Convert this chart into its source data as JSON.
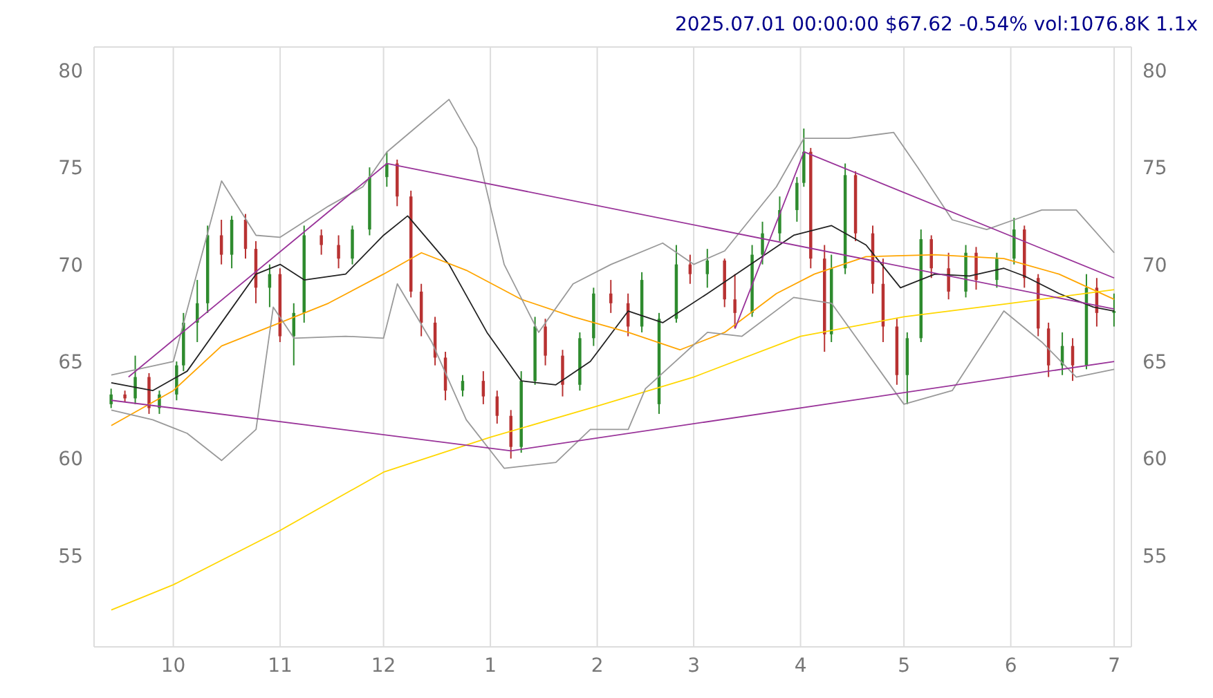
{
  "chart_data": {
    "type": "candlestick",
    "title": "2025.07.01 00:00:00 $67.62 -0.54% vol:1076.8K 1.1x",
    "x": [
      "2024-09-13",
      "2024-09-17",
      "2024-09-20",
      "2024-09-24",
      "2024-09-27",
      "2024-10-02",
      "2024-10-04",
      "2024-10-08",
      "2024-10-11",
      "2024-10-15",
      "2024-10-18",
      "2024-10-22",
      "2024-10-25",
      "2024-10-29",
      "2024-11-01",
      "2024-11-05",
      "2024-11-08",
      "2024-11-13",
      "2024-11-18",
      "2024-11-22",
      "2024-11-27",
      "2024-12-02",
      "2024-12-05",
      "2024-12-09",
      "2024-12-12",
      "2024-12-16",
      "2024-12-19",
      "2024-12-24",
      "2024-12-30",
      "2025-01-03",
      "2025-01-07",
      "2025-01-10",
      "2025-01-14",
      "2025-01-17",
      "2025-01-22",
      "2025-01-27",
      "2025-01-31",
      "2025-02-05",
      "2025-02-10",
      "2025-02-14",
      "2025-02-19",
      "2025-02-24",
      "2025-02-28",
      "2025-03-05",
      "2025-03-10",
      "2025-03-13",
      "2025-03-18",
      "2025-03-21",
      "2025-03-26",
      "2025-03-31",
      "2025-04-02",
      "2025-04-04",
      "2025-04-08",
      "2025-04-10",
      "2025-04-14",
      "2025-04-17",
      "2025-04-22",
      "2025-04-25",
      "2025-04-29",
      "2025-05-02",
      "2025-05-06",
      "2025-05-09",
      "2025-05-14",
      "2025-05-19",
      "2025-05-22",
      "2025-05-28",
      "2025-06-02",
      "2025-06-05",
      "2025-06-09",
      "2025-06-12",
      "2025-06-16",
      "2025-06-19",
      "2025-06-23",
      "2025-06-26",
      "2025-07-01"
    ],
    "ohlc": [
      [
        62.8,
        63.6,
        62.6,
        63.3
      ],
      [
        63.3,
        63.5,
        62.9,
        63.1
      ],
      [
        63.1,
        65.3,
        62.8,
        64.2
      ],
      [
        64.2,
        64.4,
        62.3,
        62.6
      ],
      [
        62.6,
        63.5,
        62.3,
        63.3
      ],
      [
        63.3,
        65.0,
        63.0,
        64.8
      ],
      [
        64.8,
        67.5,
        64.5,
        67.0
      ],
      [
        67.0,
        69.2,
        66.0,
        68.0
      ],
      [
        68.0,
        72.0,
        67.5,
        71.5
      ],
      [
        71.5,
        72.3,
        70.0,
        70.5
      ],
      [
        70.5,
        72.5,
        69.8,
        72.3
      ],
      [
        72.3,
        72.6,
        70.3,
        70.8
      ],
      [
        70.8,
        71.2,
        68.0,
        68.8
      ],
      [
        68.8,
        70.0,
        67.8,
        69.5
      ],
      [
        69.5,
        69.8,
        66.0,
        66.3
      ],
      [
        66.3,
        68.0,
        64.8,
        67.5
      ],
      [
        67.5,
        72.0,
        67.0,
        71.5
      ],
      [
        71.5,
        71.8,
        70.5,
        71.0
      ],
      [
        71.0,
        71.5,
        69.8,
        70.3
      ],
      [
        70.3,
        72.0,
        70.0,
        71.8
      ],
      [
        71.8,
        75.0,
        71.5,
        74.5
      ],
      [
        74.5,
        75.8,
        74.0,
        75.2
      ],
      [
        75.2,
        75.4,
        73.0,
        73.5
      ],
      [
        73.5,
        73.8,
        68.3,
        68.6
      ],
      [
        68.6,
        69.0,
        66.3,
        67.0
      ],
      [
        67.0,
        67.3,
        64.8,
        65.2
      ],
      [
        65.2,
        65.5,
        63.0,
        63.5
      ],
      [
        63.5,
        64.3,
        63.2,
        64.0
      ],
      [
        64.0,
        64.5,
        62.8,
        63.2
      ],
      [
        63.2,
        63.5,
        61.8,
        62.2
      ],
      [
        62.2,
        62.5,
        60.0,
        60.6
      ],
      [
        60.6,
        64.5,
        60.3,
        64.0
      ],
      [
        64.0,
        67.3,
        63.8,
        66.8
      ],
      [
        66.8,
        67.2,
        64.8,
        65.3
      ],
      [
        65.3,
        65.6,
        63.2,
        63.8
      ],
      [
        63.8,
        66.5,
        63.5,
        66.2
      ],
      [
        66.2,
        68.8,
        65.8,
        68.5
      ],
      [
        68.5,
        69.2,
        67.5,
        68.0
      ],
      [
        68.0,
        68.5,
        66.3,
        66.8
      ],
      [
        66.8,
        69.6,
        66.5,
        69.2
      ],
      [
        62.8,
        67.5,
        62.3,
        67.2
      ],
      [
        67.2,
        71.0,
        67.0,
        70.0
      ],
      [
        70.0,
        70.5,
        69.0,
        69.5
      ],
      [
        69.5,
        70.8,
        68.8,
        70.2
      ],
      [
        70.2,
        70.3,
        67.8,
        68.2
      ],
      [
        68.2,
        69.5,
        66.7,
        67.5
      ],
      [
        67.5,
        71.0,
        67.3,
        70.5
      ],
      [
        70.5,
        72.2,
        70.0,
        71.6
      ],
      [
        71.6,
        73.5,
        71.2,
        72.8
      ],
      [
        72.8,
        74.5,
        72.2,
        74.2
      ],
      [
        74.2,
        77.0,
        74.0,
        75.8
      ],
      [
        75.8,
        76.0,
        69.8,
        70.3
      ],
      [
        70.3,
        71.0,
        65.5,
        66.4
      ],
      [
        66.4,
        70.5,
        66.0,
        69.8
      ],
      [
        69.8,
        75.2,
        69.5,
        74.6
      ],
      [
        74.6,
        74.8,
        71.2,
        71.6
      ],
      [
        71.6,
        72.0,
        68.5,
        69.0
      ],
      [
        69.0,
        70.3,
        66.0,
        66.8
      ],
      [
        66.8,
        67.2,
        63.8,
        64.3
      ],
      [
        64.3,
        66.5,
        62.8,
        66.2
      ],
      [
        66.2,
        71.8,
        66.0,
        71.3
      ],
      [
        71.3,
        71.5,
        69.3,
        69.8
      ],
      [
        69.8,
        70.6,
        68.2,
        68.6
      ],
      [
        68.6,
        71.0,
        68.3,
        70.6
      ],
      [
        70.6,
        70.9,
        68.7,
        69.2
      ],
      [
        69.2,
        70.6,
        68.8,
        70.3
      ],
      [
        70.3,
        72.4,
        70.0,
        71.8
      ],
      [
        71.8,
        72.0,
        68.8,
        69.3
      ],
      [
        69.3,
        69.5,
        66.3,
        66.7
      ],
      [
        66.7,
        67.0,
        64.2,
        64.8
      ],
      [
        64.8,
        66.5,
        64.3,
        65.8
      ],
      [
        65.8,
        66.2,
        64.0,
        64.8
      ],
      [
        64.8,
        69.5,
        64.6,
        68.8
      ],
      [
        68.8,
        69.3,
        66.8,
        67.5
      ],
      [
        67.5,
        68.5,
        66.8,
        67.6
      ]
    ],
    "series": [
      {
        "type": "line",
        "color": "#222222",
        "x": [
          "2024-09-13",
          "2024-09-25",
          "2024-10-05",
          "2024-10-15",
          "2024-10-25",
          "2024-11-01",
          "2024-11-08",
          "2024-11-20",
          "2024-12-01",
          "2024-12-08",
          "2024-12-20",
          "2024-12-31",
          "2025-01-10",
          "2025-01-20",
          "2025-01-30",
          "2025-02-10",
          "2025-02-20",
          "2025-03-05",
          "2025-03-15",
          "2025-03-30",
          "2025-04-10",
          "2025-04-20",
          "2025-04-30",
          "2025-05-10",
          "2025-05-20",
          "2025-05-30",
          "2025-06-05",
          "2025-06-15",
          "2025-06-25",
          "2025-07-01"
        ],
        "values": [
          63.9,
          63.5,
          64.5,
          67,
          69.5,
          70,
          69.2,
          69.5,
          71.5,
          72.5,
          70,
          66.5,
          64,
          63.8,
          65,
          67.6,
          67,
          68.5,
          69.7,
          71.5,
          72,
          71,
          68.8,
          69.5,
          69.4,
          69.8,
          69.4,
          68.5,
          67.8,
          67.6
        ]
      },
      {
        "type": "line",
        "color": "#ffa500",
        "x": [
          "2024-09-13",
          "2024-10-01",
          "2024-10-15",
          "2024-11-01",
          "2024-11-15",
          "2024-12-01",
          "2024-12-12",
          "2024-12-25",
          "2025-01-10",
          "2025-01-25",
          "2025-02-10",
          "2025-02-25",
          "2025-03-10",
          "2025-03-25",
          "2025-04-05",
          "2025-04-20",
          "2025-05-10",
          "2025-05-30",
          "2025-06-15",
          "2025-07-01"
        ],
        "values": [
          61.7,
          63.5,
          65.8,
          67,
          68,
          69.5,
          70.6,
          69.7,
          68.2,
          67.3,
          66.5,
          65.6,
          66.5,
          68.5,
          69.5,
          70.4,
          70.5,
          70.3,
          69.5,
          68.2
        ]
      },
      {
        "type": "line",
        "color": "#ffd700",
        "x": [
          "2024-09-13",
          "2024-10-01",
          "2024-11-01",
          "2024-12-01",
          "2025-01-01",
          "2025-02-01",
          "2025-03-01",
          "2025-04-01",
          "2025-05-01",
          "2025-06-01",
          "2025-07-01"
        ],
        "values": [
          52.2,
          53.5,
          56.3,
          59.3,
          61.1,
          62.7,
          64.2,
          66.3,
          67.3,
          68,
          68.7
        ]
      },
      {
        "type": "line",
        "color": "#999999",
        "x": [
          "2024-09-13",
          "2024-10-01",
          "2024-10-15",
          "2024-10-25",
          "2024-11-01",
          "2024-11-15",
          "2024-11-25",
          "2024-12-02",
          "2024-12-10",
          "2024-12-20",
          "2024-12-28",
          "2025-01-05",
          "2025-01-15",
          "2025-01-25",
          "2025-02-05",
          "2025-02-20",
          "2025-03-01",
          "2025-03-10",
          "2025-03-25",
          "2025-04-02",
          "2025-04-15",
          "2025-04-28",
          "2025-05-05",
          "2025-05-15",
          "2025-05-25",
          "2025-06-02",
          "2025-06-10",
          "2025-06-20",
          "2025-07-01"
        ],
        "values": [
          64.3,
          65,
          74.3,
          71.5,
          71.4,
          73,
          74,
          75.8,
          77,
          78.5,
          76,
          70,
          66.5,
          69,
          70,
          71.1,
          70,
          70.7,
          74,
          76.5,
          76.5,
          76.8,
          75,
          72.3,
          71.8,
          72.3,
          72.8,
          72.8,
          70.6
        ]
      },
      {
        "type": "line",
        "color": "#999999",
        "x": [
          "2024-09-13",
          "2024-09-25",
          "2024-10-05",
          "2024-10-15",
          "2024-10-25",
          "2024-10-30",
          "2024-11-05",
          "2024-11-20",
          "2024-12-01",
          "2024-12-05",
          "2024-12-15",
          "2024-12-25",
          "2025-01-05",
          "2025-01-20",
          "2025-01-30",
          "2025-02-10",
          "2025-02-15",
          "2025-03-05",
          "2025-03-15",
          "2025-03-30",
          "2025-04-10",
          "2025-05-01",
          "2025-05-15",
          "2025-05-30",
          "2025-06-10",
          "2025-06-20",
          "2025-07-01"
        ],
        "values": [
          62.5,
          62,
          61.3,
          59.9,
          61.5,
          67.8,
          66.2,
          66.3,
          66.2,
          69,
          66,
          62,
          59.5,
          59.8,
          61.5,
          61.5,
          63.6,
          66.5,
          66.3,
          68.3,
          68,
          62.8,
          63.5,
          67.6,
          66,
          64.2,
          64.6
        ]
      },
      {
        "type": "line",
        "color": "#993399",
        "x": [
          "2024-09-18",
          "2024-12-02",
          "2025-07-01"
        ],
        "values": [
          64.2,
          75.2,
          67.7
        ]
      },
      {
        "type": "line",
        "color": "#993399",
        "x": [
          "2024-09-13",
          "2025-01-07",
          "2025-07-01"
        ],
        "values": [
          63,
          60.4,
          65
        ]
      },
      {
        "type": "line",
        "color": "#993399",
        "x": [
          "2025-03-13",
          "2025-04-02",
          "2025-07-01"
        ],
        "values": [
          66.7,
          75.8,
          69.3
        ]
      }
    ],
    "xlim": [
      "2024-09-08",
      "2025-07-06"
    ],
    "xticks": [
      {
        "value": "2024-10-01",
        "label": "10"
      },
      {
        "value": "2024-11-01",
        "label": "11"
      },
      {
        "value": "2024-12-01",
        "label": "12"
      },
      {
        "value": "2025-01-01",
        "label": "1"
      },
      {
        "value": "2025-02-01",
        "label": "2"
      },
      {
        "value": "2025-03-01",
        "label": "3"
      },
      {
        "value": "2025-04-01",
        "label": "4"
      },
      {
        "value": "2025-05-01",
        "label": "5"
      },
      {
        "value": "2025-06-01",
        "label": "6"
      },
      {
        "value": "2025-07-01",
        "label": "7"
      }
    ],
    "ylim": [
      50.3,
      81.2
    ],
    "yticks": [
      55,
      60,
      65,
      70,
      75,
      80
    ],
    "y2lim": [
      50.3,
      81.2
    ],
    "y2ticks": [
      55,
      60,
      65,
      70,
      75,
      80
    ],
    "grid": true,
    "legend": false
  }
}
